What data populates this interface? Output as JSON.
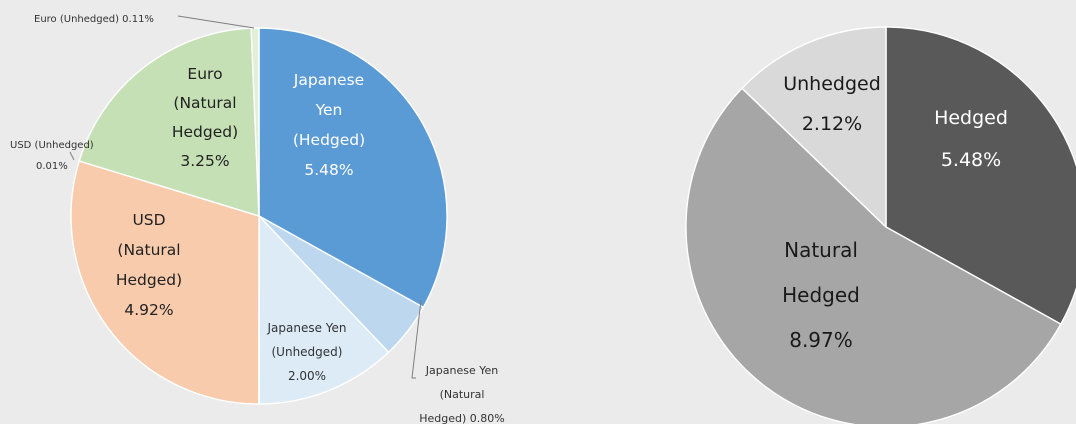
{
  "chart_data": [
    {
      "type": "pie",
      "colors": [
        "#5b9bd5",
        "#bdd7ee",
        "#ddebf7",
        "#f8cbad",
        "#c5e0b4",
        "#deebf7",
        "#e2efd9"
      ],
      "slices": [
        {
          "label": "Japanese Yen (Hedged) 5.48%",
          "value": 5.48,
          "color": "#5b9bd5",
          "label_position": "inside"
        },
        {
          "label": "Japanese Yen (Natural Hedged) 0.80%",
          "value": 0.8,
          "color": "#bdd7ee",
          "label_position": "outside-leader"
        },
        {
          "label": "Japanese Yen (Unhedged) 2.00%",
          "value": 2.0,
          "color": "#ddebf7",
          "label_position": "inside"
        },
        {
          "label": "USD (Unhedged) 0.01%",
          "value": 0.01,
          "color": "#f8cbad",
          "label_position": "outside-leader"
        },
        {
          "label": "USD (Natural Hedged) 4.92%",
          "value": 4.92,
          "color": "#f8cbad",
          "label_position": "inside"
        },
        {
          "label": "Euro (Natural Hedged) 3.25%",
          "value": 3.25,
          "color": "#c5e0b4",
          "label_position": "inside"
        },
        {
          "label": "Euro (Unhedged) 0.11%",
          "value": 0.11,
          "color": "#e2efd9",
          "label_position": "outside-leader"
        }
      ],
      "label_lines": [
        [
          "Japanese",
          "Yen",
          "(Hedged)",
          "5.48%"
        ],
        [
          "Japanese Yen",
          "(Natural",
          "Hedged) 0.80%"
        ],
        [
          "Japanese Yen",
          "(Unhedged)",
          "2.00%"
        ],
        [
          "USD (Unhedged)",
          "0.01%"
        ],
        [
          "USD",
          "(Natural",
          "Hedged)",
          "4.92%"
        ],
        [
          "Euro",
          "(Natural",
          "Hedged)",
          "3.25%"
        ],
        [
          "Euro (Unhedged) 0.11%"
        ]
      ],
      "start_angle_deg": 0,
      "direction": "clockwise",
      "legend": "none"
    },
    {
      "type": "pie",
      "slices": [
        {
          "label": "Hedged 5.48%",
          "value": 5.48,
          "color": "#595959",
          "text_color": "#ffffff"
        },
        {
          "label": "Natural Hedged 8.97%",
          "value": 8.97,
          "color": "#a6a6a6",
          "text_color": "#1a1a1a"
        },
        {
          "label": "Unhedged 2.12%",
          "value": 2.12,
          "color": "#d9d9d9",
          "text_color": "#1a1a1a"
        }
      ],
      "label_lines": [
        [
          "Hedged",
          "5.48%"
        ],
        [
          "Natural",
          "Hedged",
          "8.97%"
        ],
        [
          "Unhedged",
          "2.12%"
        ]
      ],
      "start_angle_deg": 0,
      "direction": "clockwise",
      "legend": "none"
    }
  ]
}
